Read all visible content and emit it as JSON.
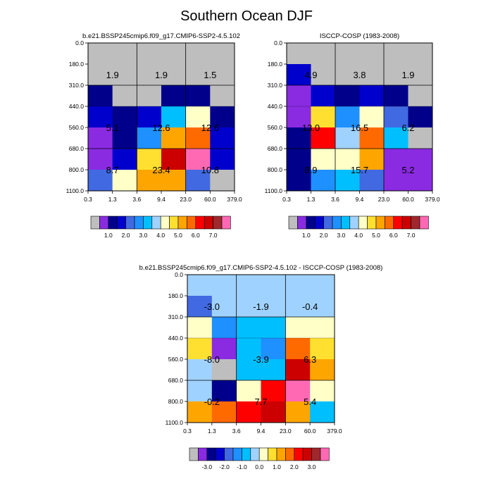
{
  "title": "Southern Ocean DJF",
  "palette": [
    "#bebebe",
    "#8a2be2",
    "#00008b",
    "#0000cd",
    "#4169e1",
    "#1e90ff",
    "#00bfff",
    "#a0d2ff",
    "#ffffc8",
    "#ffe030",
    "#ffa500",
    "#ff6a00",
    "#ff0000",
    "#cd0000",
    "#a0282d",
    "#ff69b4"
  ],
  "chart_data": [
    {
      "type": "heatmap",
      "title": "b.e21.BSSP245cmip6.f09_g17.CMIP6-SSP2-4.5.102",
      "x_tick_labels": [
        "0.3",
        "1.3",
        "3.6",
        "9.4",
        "23.0",
        "60.0",
        "379.0"
      ],
      "y_tick_labels": [
        "0.0",
        "180.0",
        "310.0",
        "440.0",
        "560.0",
        "680.0",
        "800.0",
        "1100.0"
      ],
      "cell_color_index": [
        [
          0,
          0,
          0,
          0,
          0,
          0
        ],
        [
          0,
          0,
          0,
          0,
          0,
          0
        ],
        [
          2,
          0,
          0,
          2,
          2,
          0
        ],
        [
          3,
          2,
          3,
          6,
          8,
          2
        ],
        [
          1,
          2,
          5,
          10,
          11,
          3
        ],
        [
          1,
          3,
          9,
          13,
          15,
          3
        ],
        [
          4,
          8,
          10,
          10,
          4,
          0
        ]
      ],
      "block_values": [
        [
          "1.9",
          "1.9",
          "1.5"
        ],
        [
          "5.1",
          "12.6",
          "12.6"
        ],
        [
          "8.7",
          "23.4",
          "10.8"
        ]
      ],
      "colorbar_labels": [
        "1.0",
        "2.0",
        "3.0",
        "4.0",
        "5.0",
        "6.0",
        "7.0"
      ]
    },
    {
      "type": "heatmap",
      "title": "ISCCP-COSP (1983-2008)",
      "x_tick_labels": [
        "0.3",
        "1.3",
        "3.6",
        "9.4",
        "23.0",
        "60.0",
        "379.0"
      ],
      "y_tick_labels": [
        "0.0",
        "180.0",
        "310.0",
        "440.0",
        "560.0",
        "680.0",
        "800.0",
        "1100.0"
      ],
      "cell_color_index": [
        [
          0,
          0,
          0,
          0,
          0,
          0
        ],
        [
          3,
          0,
          0,
          0,
          0,
          0
        ],
        [
          1,
          3,
          2,
          3,
          2,
          0
        ],
        [
          1,
          9,
          5,
          8,
          4,
          2
        ],
        [
          2,
          12,
          7,
          11,
          6,
          0
        ],
        [
          2,
          8,
          8,
          10,
          1,
          1
        ],
        [
          2,
          5,
          6,
          4,
          1,
          1
        ]
      ],
      "block_values": [
        [
          "4.9",
          "3.8",
          "1.9"
        ],
        [
          "13.0",
          "16.5",
          "6.2"
        ],
        [
          "8.9",
          "15.7",
          "5.2"
        ]
      ],
      "colorbar_labels": [
        "1.0",
        "2.0",
        "3.0",
        "4.0",
        "5.0",
        "6.0",
        "7.0"
      ]
    },
    {
      "type": "heatmap",
      "title": "b.e21.BSSP245cmip6.f09_g17.CMIP6-SSP2-4.5.102 - ISCCP-COSP (1983-2008)",
      "x_tick_labels": [
        "0.3",
        "1.3",
        "3.6",
        "9.4",
        "23.0",
        "60.0",
        "379.0"
      ],
      "y_tick_labels": [
        "0.0",
        "180.0",
        "310.0",
        "440.0",
        "560.0",
        "680.0",
        "800.0",
        "1100.0"
      ],
      "cell_color_index": [
        [
          7,
          7,
          7,
          7,
          7,
          7
        ],
        [
          4,
          7,
          7,
          7,
          7,
          7
        ],
        [
          8,
          5,
          6,
          6,
          8,
          8
        ],
        [
          9,
          1,
          6,
          5,
          11,
          9
        ],
        [
          7,
          0,
          6,
          6,
          13,
          10
        ],
        [
          7,
          2,
          8,
          12,
          15,
          8
        ],
        [
          10,
          11,
          12,
          13,
          10,
          6
        ]
      ],
      "block_values": [
        [
          "-3.0",
          "-1.9",
          "-0.4"
        ],
        [
          "-8.0",
          "-3.9",
          "6.3"
        ],
        [
          "-0.2",
          "7.7",
          "5.4"
        ]
      ],
      "colorbar_labels": [
        "-3.0",
        "-2.0",
        "-1.0",
        "0.0",
        "1.0",
        "2.0",
        "3.0"
      ]
    }
  ]
}
